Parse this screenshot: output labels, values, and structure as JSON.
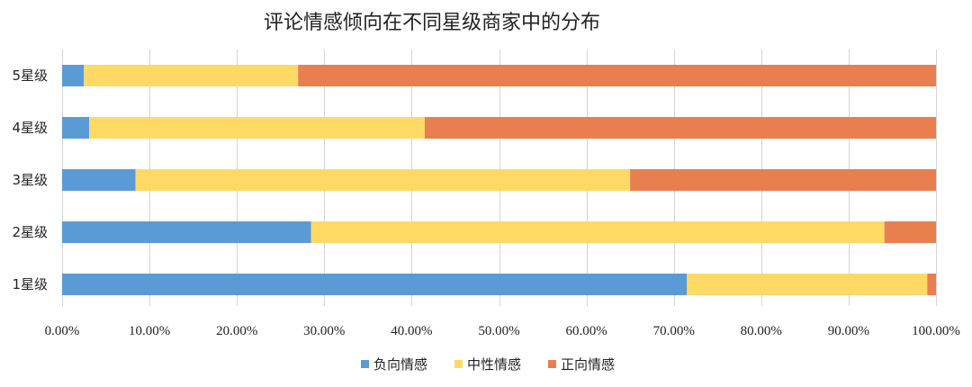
{
  "chart_data": {
    "type": "bar",
    "orientation": "horizontal",
    "stacked": true,
    "title": "评论情感倾向在不同星级商家中的分布",
    "categories": [
      "5星级",
      "4星级",
      "3星级",
      "2星级",
      "1星级"
    ],
    "series": [
      {
        "name": "负向情感",
        "color": "#5B9BD5",
        "values": [
          0.025,
          0.031,
          0.084,
          0.285,
          0.715
        ]
      },
      {
        "name": "中性情感",
        "color": "#FFD966",
        "values": [
          0.245,
          0.384,
          0.566,
          0.656,
          0.275
        ]
      },
      {
        "name": "正向情感",
        "color": "#E97E4E",
        "values": [
          0.73,
          0.585,
          0.35,
          0.059,
          0.01
        ]
      }
    ],
    "xlim": [
      0,
      1
    ],
    "x_ticks": [
      0,
      0.1,
      0.2,
      0.3,
      0.4,
      0.5,
      0.6,
      0.7,
      0.8,
      0.9,
      1.0
    ],
    "x_tick_labels": [
      "0.00%",
      "10.00%",
      "20.00%",
      "30.00%",
      "40.00%",
      "50.00%",
      "60.00%",
      "70.00%",
      "80.00%",
      "90.00%",
      "100.00%"
    ],
    "grid": true,
    "legend_position": "bottom",
    "gridline_color": "#d9d9d9"
  }
}
